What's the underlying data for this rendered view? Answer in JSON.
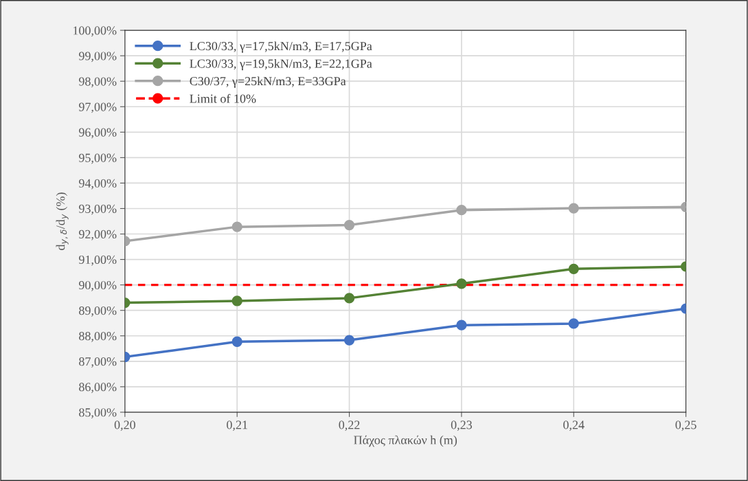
{
  "chart_data": {
    "type": "line",
    "xlabel": "Πάχος πλακών h (m)",
    "ylabel": "d$_{y,δ}$/d$_{y}$ (%)",
    "x": [
      0.2,
      0.21,
      0.22,
      0.23,
      0.24,
      0.25
    ],
    "series": [
      {
        "name": "LC30/33, γ=17,5kN/m3, E=17,5GPa",
        "color": "#4472c4",
        "values": [
          87.17,
          87.77,
          87.83,
          88.42,
          88.48,
          89.07
        ]
      },
      {
        "name": "LC30/33, γ=19,5kN/m3, E=22,1GPa",
        "color": "#548235",
        "values": [
          89.3,
          89.37,
          89.48,
          90.05,
          90.63,
          90.72
        ]
      },
      {
        "name": "C30/37, γ=25kN/m3, E=33GPa",
        "color": "#a5a5a5",
        "values": [
          91.72,
          92.28,
          92.35,
          92.94,
          93.01,
          93.06
        ]
      }
    ],
    "ref_lines": [
      {
        "axis": "y",
        "value": 90,
        "label": "Limit of 10%",
        "color": "#ff0000",
        "line_style": "dashed"
      }
    ],
    "xlim": [
      0.2,
      0.25
    ],
    "xticks": [
      {
        "value": 0.2,
        "label": "0,20"
      },
      {
        "value": 0.21,
        "label": "0,21"
      },
      {
        "value": 0.22,
        "label": "0,22"
      },
      {
        "value": 0.23,
        "label": "0,23"
      },
      {
        "value": 0.24,
        "label": "0,24"
      },
      {
        "value": 0.25,
        "label": "0,25"
      }
    ],
    "ylim": [
      85,
      100
    ],
    "yticks": [
      {
        "value": 85,
        "label": "85,00%"
      },
      {
        "value": 86,
        "label": "86,00%"
      },
      {
        "value": 87,
        "label": "87,00%"
      },
      {
        "value": 88,
        "label": "88,00%"
      },
      {
        "value": 89,
        "label": "89,00%"
      },
      {
        "value": 90,
        "label": "90,00%"
      },
      {
        "value": 91,
        "label": "91,00%"
      },
      {
        "value": 92,
        "label": "92,00%"
      },
      {
        "value": 93,
        "label": "93,00%"
      },
      {
        "value": 94,
        "label": "94,00%"
      },
      {
        "value": 95,
        "label": "95,00%"
      },
      {
        "value": 96,
        "label": "96,00%"
      },
      {
        "value": 97,
        "label": "97,00%"
      },
      {
        "value": 98,
        "label": "98,00%"
      },
      {
        "value": 99,
        "label": "99,00%"
      },
      {
        "value": 100,
        "label": "100,00%"
      }
    ],
    "grid": true,
    "legend": "top left",
    "marker": "circle",
    "line_style": "solid"
  }
}
